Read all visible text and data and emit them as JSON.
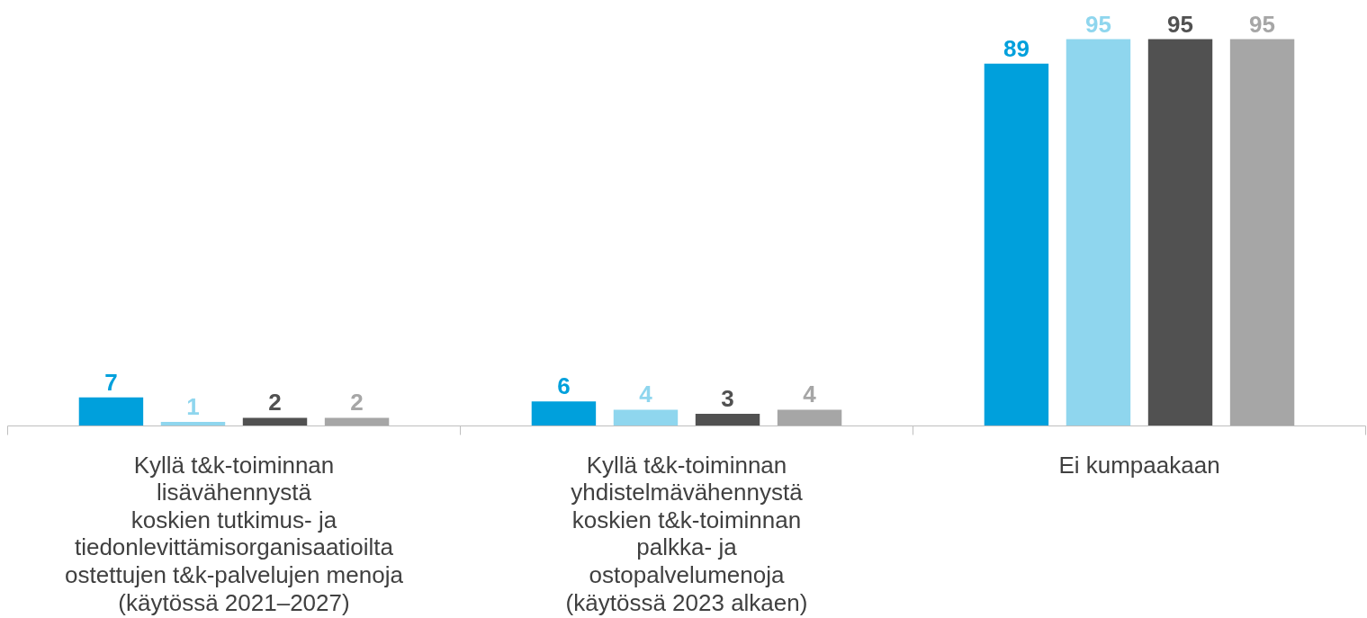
{
  "chart_data": {
    "type": "bar",
    "categories": [
      "Kyllä t&k-toiminnan\nlisävähennystä\nkoskien tutkimus- ja\ntiedonlevittämisorganisaatioilta\nostettujen t&k-palvelujen menoja\n(käytössä 2021–2027)",
      "Kyllä t&k-toiminnan\nyhdistelmävähennystä\nkoskien t&k-toiminnan\npalkka- ja\nostopalvelumenoja\n(käytössä 2023 alkaen)",
      "Ei kumpaakaan"
    ],
    "series": [
      {
        "color": "#00a0dc",
        "values": [
          7,
          6,
          89
        ]
      },
      {
        "color": "#8fd6ee",
        "values": [
          1,
          4,
          95
        ]
      },
      {
        "color": "#515151",
        "values": [
          2,
          3,
          95
        ]
      },
      {
        "color": "#a6a6a6",
        "values": [
          2,
          4,
          95
        ]
      }
    ],
    "data_labels": true
  }
}
